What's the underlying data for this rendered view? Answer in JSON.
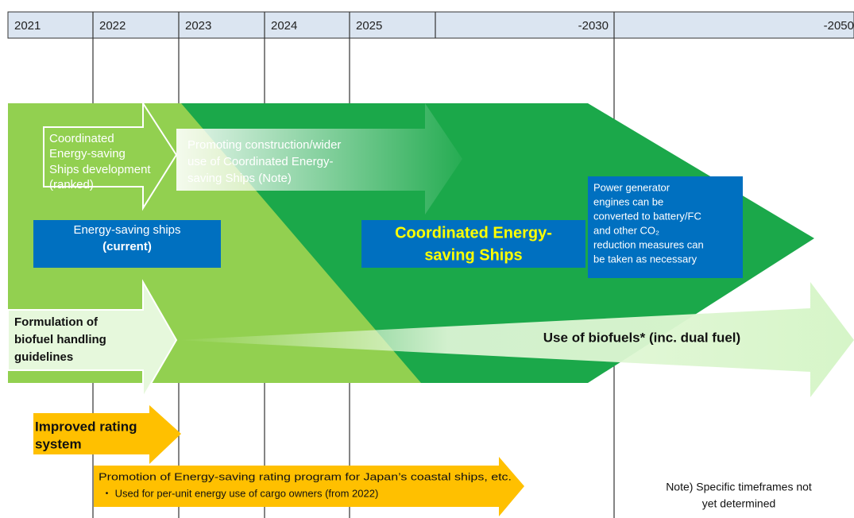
{
  "header": {
    "years": [
      "2021",
      "2022",
      "2023",
      "2024",
      "2025",
      "-2030",
      "-2050"
    ]
  },
  "items": {
    "coordinated_development": [
      "Coordinated",
      "Energy-saving",
      "Ships development",
      "(ranked)"
    ],
    "promoting": [
      "Promoting construction/wider",
      "use of Coordinated Energy-",
      "saving Ships (Note)"
    ],
    "energy_saving_current": [
      "Energy-saving ships",
      "(current)"
    ],
    "coordinated_ships": [
      "Coordinated Energy-",
      "saving Ships"
    ],
    "power_generator": [
      "Power generator",
      "engines can be",
      "converted to battery/FC",
      "and other CO₂",
      "reduction measures can",
      "be taken as necessary"
    ],
    "biofuel_guidelines": [
      "Formulation of",
      "biofuel handling",
      "guidelines"
    ],
    "use_of_biofuels": "Use of biofuels* (inc. dual fuel)",
    "improved_rating": [
      "Improved rating",
      "system"
    ],
    "promotion_rating": [
      "Promotion of Energy-saving rating program for Japan’s coastal ships, etc.",
      "・ Used for per-unit energy use of cargo owners (from 2022)"
    ],
    "note": [
      "Note) Specific timeframes not",
      "yet determined"
    ]
  }
}
